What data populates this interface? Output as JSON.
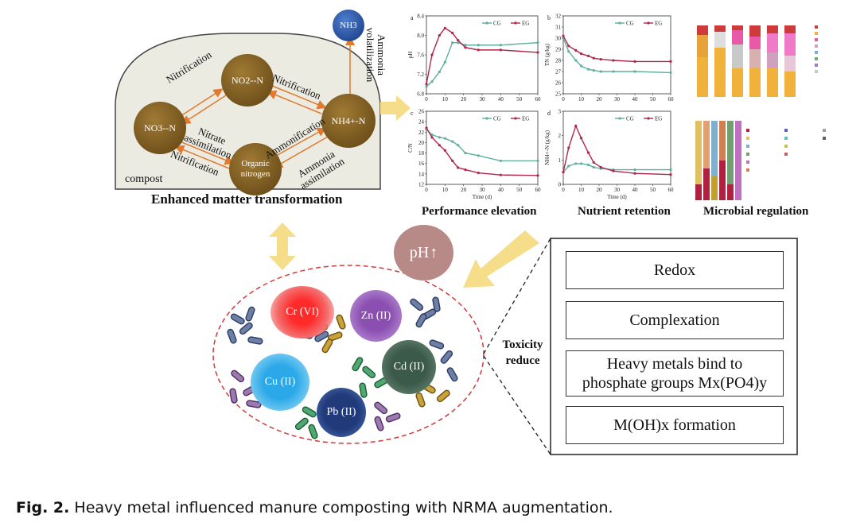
{
  "compost": {
    "label": "compost",
    "nodes": {
      "no3": "NO3--N",
      "no2": "NO2--N",
      "nh4": "NH4+-N",
      "organic": "Organic nitrogen",
      "nh3": "NH3"
    },
    "edges": {
      "nitrification_1": "Nitrification",
      "nitrification_2": "Nitrification",
      "nitrification_3": "Nitrification",
      "nitrate_assimilation": "Nitrate assimilation",
      "ammonification": "Ammonification",
      "ammonia_assimilation": "Ammonia assimilation",
      "ammonia_volatilization": "Ammonia volatilization"
    },
    "title": "Enhanced matter transformation"
  },
  "sections": {
    "performance": "Performance elevation",
    "nutrient": "Nutrient retention",
    "microbial": "Microbial regulation"
  },
  "ph_label": "pH",
  "toxicity_label": "Toxicity reduce",
  "mechanisms": [
    "Redox",
    "Complexation",
    "Heavy metals bind to phosphate groups Mx(PO4)y",
    "M(OH)x formation"
  ],
  "metals": [
    "Cr (VI)",
    "Zn (II)",
    "Cd (II)",
    "Cu (II)",
    "Pb (II)"
  ],
  "caption": {
    "bold": "Fig. 2.",
    "text": " Heavy metal influenced manure composting with NRMA augmentation."
  },
  "colors": {
    "cg": "#5fae9f",
    "eg": "#b0264a",
    "node": "#7a5a1e",
    "arrow": "#e07a2e",
    "dashed_ellipse": "#d23a3a",
    "ph_circle": "#b88a87"
  },
  "chart_data": [
    {
      "type": "line",
      "panel": "a",
      "xlabel": "",
      "ylabel": "pH",
      "xlim": [
        0,
        60
      ],
      "ylim": [
        6.8,
        8.4
      ],
      "x": [
        0,
        3,
        7,
        10,
        14,
        17,
        21,
        28,
        40,
        60
      ],
      "series": [
        {
          "name": "CG",
          "values": [
            6.95,
            7.05,
            7.25,
            7.45,
            7.85,
            7.85,
            7.8,
            7.8,
            7.8,
            7.85
          ]
        },
        {
          "name": "EG",
          "values": [
            7.0,
            7.6,
            8.0,
            8.15,
            8.05,
            7.9,
            7.75,
            7.7,
            7.7,
            7.65
          ]
        }
      ],
      "xticks": [
        "0",
        "10",
        "20",
        "30",
        "40",
        "50",
        "60"
      ],
      "yticks": [
        "6.8",
        "7.2",
        "7.6",
        "8.0",
        "8.4"
      ]
    },
    {
      "type": "line",
      "panel": "b",
      "xlabel": "",
      "ylabel": "TN (g/kg)",
      "xlim": [
        0,
        60
      ],
      "ylim": [
        25,
        32
      ],
      "x": [
        0,
        3,
        7,
        10,
        14,
        17,
        21,
        28,
        40,
        60
      ],
      "series": [
        {
          "name": "CG",
          "values": [
            30.0,
            28.8,
            28.0,
            27.5,
            27.2,
            27.1,
            27.0,
            27.0,
            27.0,
            26.9
          ]
        },
        {
          "name": "EG",
          "values": [
            30.2,
            29.3,
            28.9,
            28.6,
            28.4,
            28.2,
            28.1,
            28.0,
            27.9,
            27.9
          ]
        }
      ],
      "xticks": [
        "0",
        "10",
        "20",
        "30",
        "40",
        "50",
        "60"
      ],
      "yticks": [
        "25",
        "26",
        "27",
        "28",
        "29",
        "30",
        "31",
        "32"
      ]
    },
    {
      "type": "line",
      "panel": "c",
      "xlabel": "Time (d)",
      "ylabel": "C/N",
      "xlim": [
        0,
        60
      ],
      "ylim": [
        12,
        26
      ],
      "x": [
        0,
        3,
        7,
        10,
        14,
        17,
        21,
        28,
        40,
        60
      ],
      "series": [
        {
          "name": "CG",
          "values": [
            22.5,
            21.5,
            21.0,
            20.8,
            20.2,
            19.5,
            18.0,
            17.5,
            16.5,
            16.5
          ]
        },
        {
          "name": "EG",
          "values": [
            22.8,
            21.0,
            19.5,
            18.5,
            16.5,
            15.2,
            14.8,
            14.2,
            13.8,
            13.7
          ]
        }
      ],
      "xticks": [
        "0",
        "10",
        "20",
        "30",
        "40",
        "50",
        "60"
      ],
      "yticks": [
        "12",
        "14",
        "16",
        "18",
        "20",
        "22",
        "24",
        "26"
      ]
    },
    {
      "type": "line",
      "panel": "d",
      "xlabel": "Time (d)",
      "ylabel": "NH4+-N (g/kg)",
      "xlim": [
        0,
        60
      ],
      "ylim": [
        0,
        3
      ],
      "x": [
        0,
        3,
        7,
        10,
        14,
        17,
        21,
        28,
        40,
        60
      ],
      "series": [
        {
          "name": "CG",
          "values": [
            0.5,
            0.75,
            0.85,
            0.85,
            0.8,
            0.7,
            0.65,
            0.6,
            0.6,
            0.6
          ]
        },
        {
          "name": "EG",
          "values": [
            0.5,
            1.5,
            2.4,
            1.9,
            1.3,
            0.9,
            0.7,
            0.55,
            0.45,
            0.4
          ]
        }
      ],
      "xticks": [
        "0",
        "10",
        "20",
        "30",
        "40",
        "50",
        "60"
      ],
      "yticks": [
        "0",
        "1",
        "2",
        "3"
      ]
    }
  ]
}
